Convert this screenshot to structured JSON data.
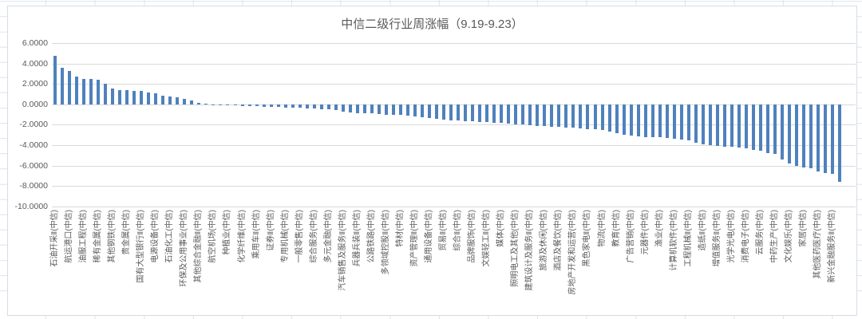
{
  "chart_data": {
    "type": "bar",
    "title": "中信二级行业周涨幅（9.19-9.23）",
    "xlabel": "",
    "ylabel": "",
    "ylim": [
      -10,
      6
    ],
    "ytick_interval": 2,
    "yticks": [
      "6.0000",
      "4.0000",
      "2.0000",
      "0.0000",
      "-2.0000",
      "-4.0000",
      "-6.0000",
      "-8.0000",
      "-10.0000"
    ],
    "grid": true,
    "legend": false,
    "bar_color": "#4f81bd",
    "gridline_color": "#d9d9d9",
    "text_color": "#595959",
    "category_label_interval": 2,
    "note_label_mapping": "categories[i] labels values[2*i]; every second bar is unlabeled on the axis",
    "categories": [
      "石油开采Ⅱ(中信)",
      "航运港口(中信)",
      "油服工程(中信)",
      "稀有金属(中信)",
      "其他钢铁(中信)",
      "贵金属(中信)",
      "国有大型银行Ⅱ(中信)",
      "电源设备(中信)",
      "石油化工(中信)",
      "环保及公用事业(中信)",
      "其他综合金融Ⅱ(中信)",
      "航空机场(中信)",
      "种植业(中信)",
      "化学纤维(中信)",
      "乘用车Ⅱ(中信)",
      "证券Ⅱ(中信)",
      "专用机械(中信)",
      "一般零售(中信)",
      "综合服务(中信)",
      "多元金融(中信)",
      "汽车销售及服务Ⅱ(中信)",
      "兵器兵装Ⅱ(中信)",
      "公路铁路(中信)",
      "多领域控股Ⅱ(中信)",
      "特材(中信)",
      "资产管理Ⅱ(中信)",
      "通用设备(中信)",
      "贸易Ⅱ(中信)",
      "综合Ⅱ(中信)",
      "品牌服饰(中信)",
      "文娱轻工Ⅱ(中信)",
      "媒体(中信)",
      "照明电工及其他(中信)",
      "建筑设计及服务Ⅱ(中信)",
      "旅游及休闲(中信)",
      "酒店及餐饮(中信)",
      "房地产开发和运营(中信)",
      "黑色家电Ⅱ(中信)",
      "物流(中信)",
      "教育(中信)",
      "广告营销(中信)",
      "元器件(中信)",
      "渔业(中信)",
      "计算机软件(中信)",
      "工程机械Ⅱ(中信)",
      "造纸Ⅱ(中信)",
      "增值服务Ⅱ(中信)",
      "光学光电(中信)",
      "消费电子(中信)",
      "云服务(中信)",
      "中药生产(中信)",
      "文化娱乐(中信)",
      "家居(中信)",
      "其他医药医疗(中信)",
      "新兴金融服务Ⅱ(中信)"
    ],
    "values": [
      4.75,
      3.55,
      3.25,
      2.7,
      2.52,
      2.45,
      2.42,
      2.05,
      1.55,
      1.38,
      1.36,
      1.3,
      1.28,
      1.18,
      1.05,
      0.88,
      0.78,
      0.65,
      0.55,
      0.38,
      0.15,
      0.03,
      -0.02,
      -0.08,
      -0.1,
      -0.12,
      -0.15,
      -0.18,
      -0.2,
      -0.22,
      -0.25,
      -0.28,
      -0.3,
      -0.33,
      -0.36,
      -0.4,
      -0.44,
      -0.48,
      -0.52,
      -0.58,
      -0.75,
      -0.8,
      -0.84,
      -0.87,
      -0.9,
      -0.95,
      -1.0,
      -1.02,
      -1.05,
      -1.1,
      -1.2,
      -1.28,
      -1.35,
      -1.42,
      -1.5,
      -1.55,
      -1.58,
      -1.62,
      -1.66,
      -1.7,
      -1.75,
      -1.8,
      -1.85,
      -1.9,
      -1.95,
      -2.0,
      -2.05,
      -2.1,
      -2.15,
      -2.18,
      -2.22,
      -2.26,
      -2.3,
      -2.35,
      -2.4,
      -2.45,
      -2.55,
      -2.65,
      -2.8,
      -3.0,
      -3.1,
      -3.15,
      -3.18,
      -3.2,
      -3.25,
      -3.3,
      -3.38,
      -3.45,
      -3.5,
      -3.8,
      -3.95,
      -4.0,
      -4.08,
      -4.15,
      -4.18,
      -4.22,
      -4.35,
      -4.5,
      -4.55,
      -4.75,
      -4.85,
      -5.4,
      -5.8,
      -6.0,
      -6.2,
      -6.3,
      -6.55,
      -6.7,
      -6.8,
      -7.6
    ]
  }
}
